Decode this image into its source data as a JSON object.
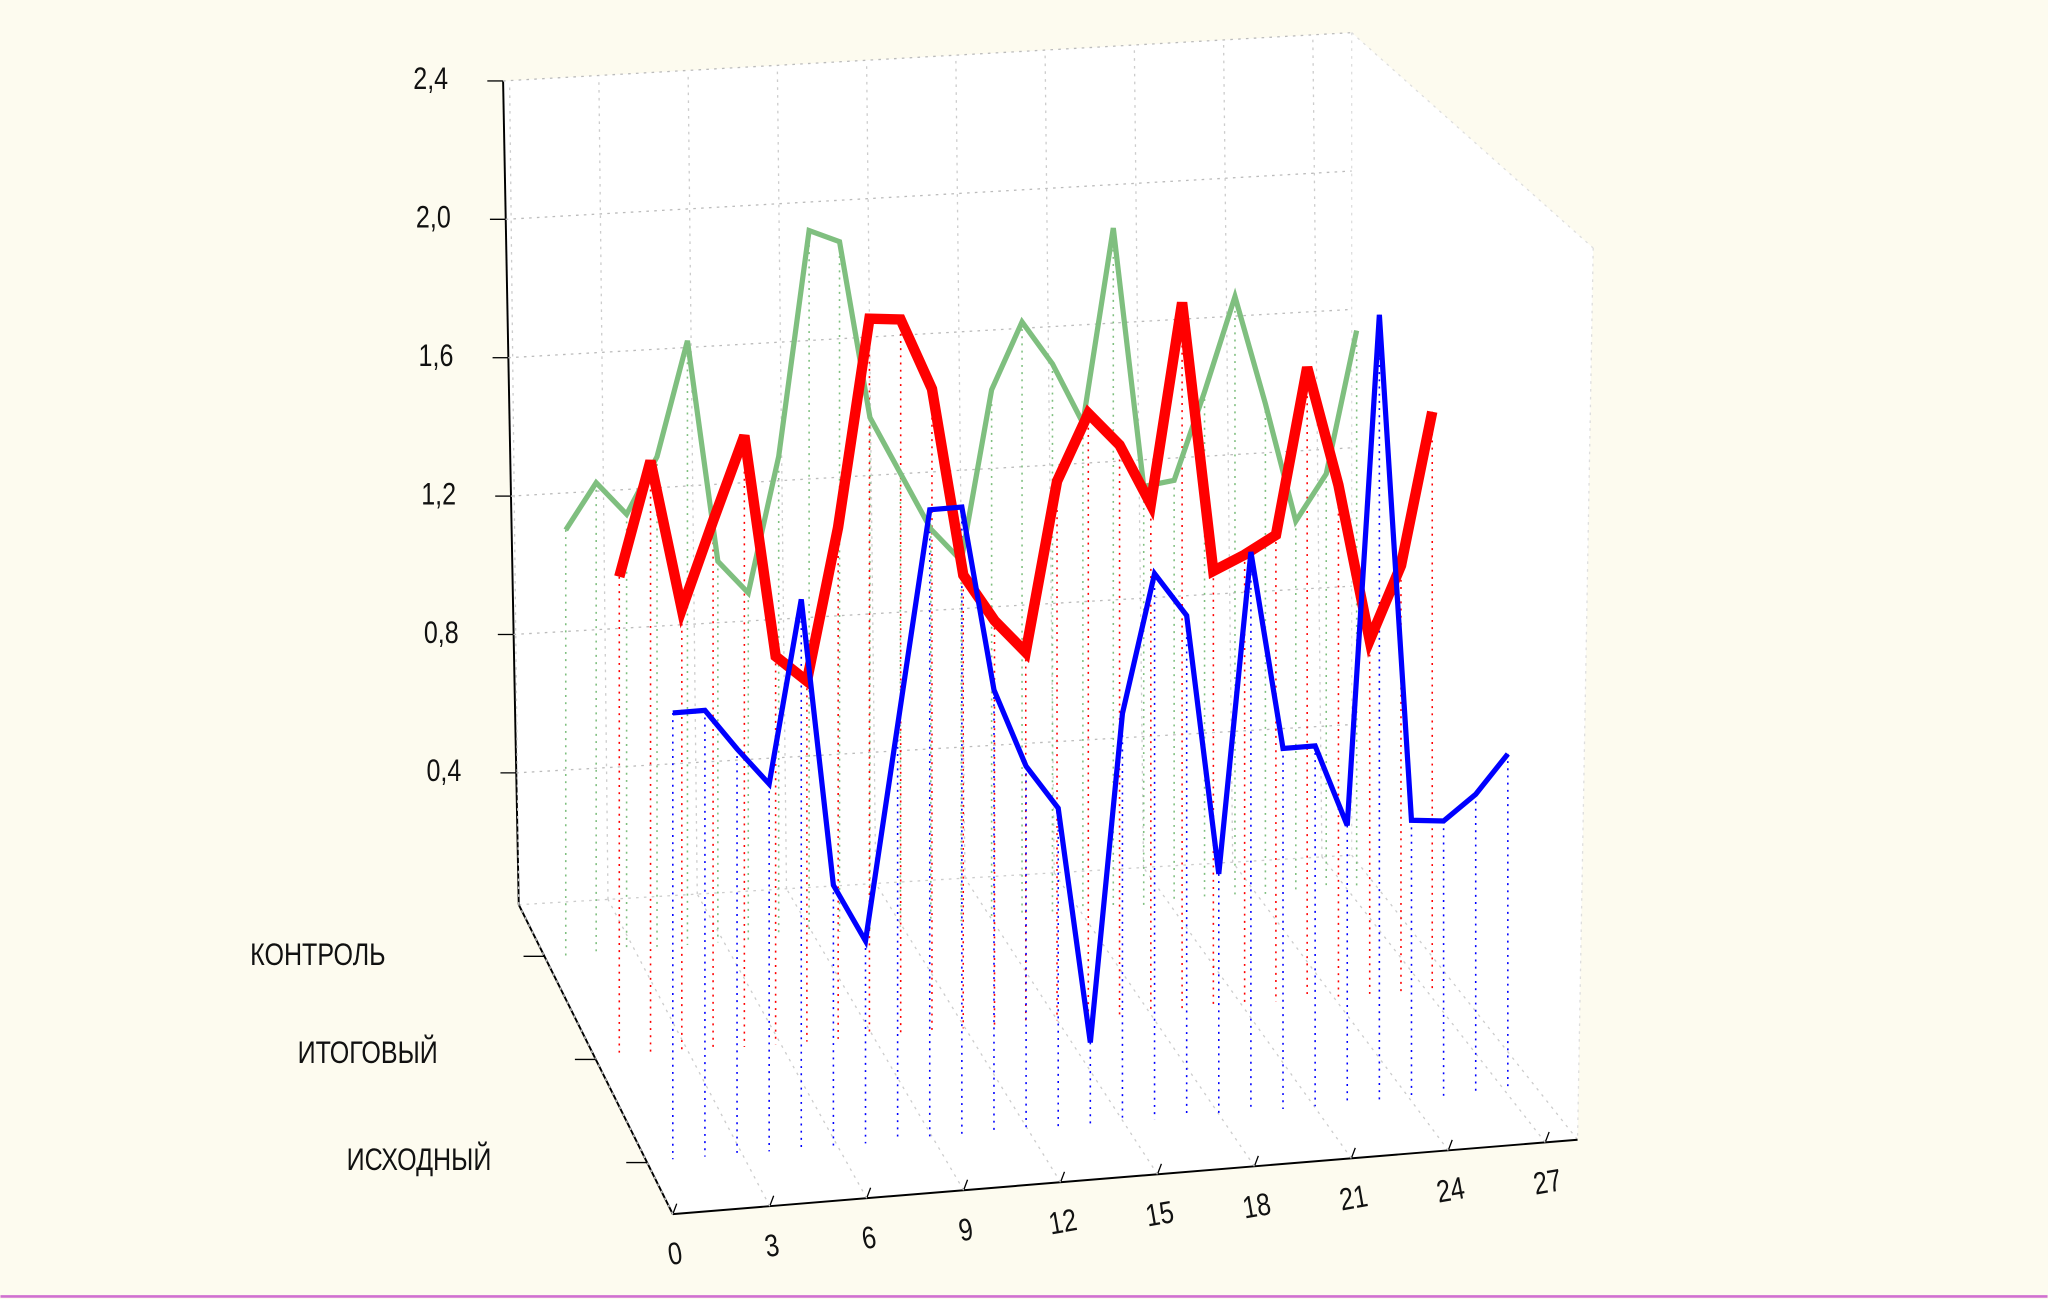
{
  "chart_data": {
    "type": "line3d",
    "x": [
      0,
      1,
      2,
      3,
      4,
      5,
      6,
      7,
      8,
      9,
      10,
      11,
      12,
      13,
      14,
      15,
      16,
      17,
      18,
      19,
      20,
      21,
      22,
      23,
      24,
      25,
      26
    ],
    "series": [
      {
        "name": "КОНТРОЛЬ",
        "color": "#7fbf7f",
        "values": [
          1.24,
          1.37,
          1.27,
          1.43,
          1.76,
          1.11,
          1.01,
          1.4,
          2.05,
          2.01,
          1.49,
          1.32,
          1.15,
          1.05,
          1.54,
          1.73,
          1.6,
          1.42,
          1.98,
          1.22,
          1.23,
          1.48,
          1.75,
          1.43,
          1.08,
          1.21,
          1.62
        ]
      },
      {
        "name": "ИТОГОВЫЙ",
        "color": "#ff0000",
        "values": [
          1.4,
          1.73,
          1.29,
          1.54,
          1.78,
          1.13,
          1.05,
          1.49,
          2.09,
          2.08,
          1.87,
          1.32,
          1.18,
          1.08,
          1.57,
          1.76,
          1.66,
          1.48,
          2.06,
          1.27,
          1.31,
          1.36,
          1.84,
          1.49,
          1.03,
          1.24,
          1.68
        ]
      },
      {
        "name": "ИСХОДНЫЙ",
        "color": "#0000ff",
        "values": [
          1.3,
          1.3,
          1.18,
          1.07,
          1.6,
          0.76,
          0.59,
          1.21,
          1.83,
          1.83,
          1.29,
          1.06,
          0.93,
          0.24,
          1.19,
          1.59,
          1.46,
          0.7,
          1.63,
          1.05,
          1.05,
          0.81,
          2.29,
          0.81,
          0.8,
          0.87,
          0.98
        ]
      }
    ],
    "xlim": [
      0,
      28
    ],
    "xticks": [
      0,
      3,
      6,
      9,
      12,
      15,
      18,
      21,
      24,
      27
    ],
    "ylim": [
      0,
      2.4
    ],
    "yticks": [
      {
        "value": 0.4,
        "label": "0,4"
      },
      {
        "value": 0.8,
        "label": "0,8"
      },
      {
        "value": 1.2,
        "label": "1,2"
      },
      {
        "value": 1.6,
        "label": "1,6"
      },
      {
        "value": 2.0,
        "label": "2,0"
      },
      {
        "value": 2.4,
        "label": "2,4"
      }
    ],
    "grid": true
  }
}
